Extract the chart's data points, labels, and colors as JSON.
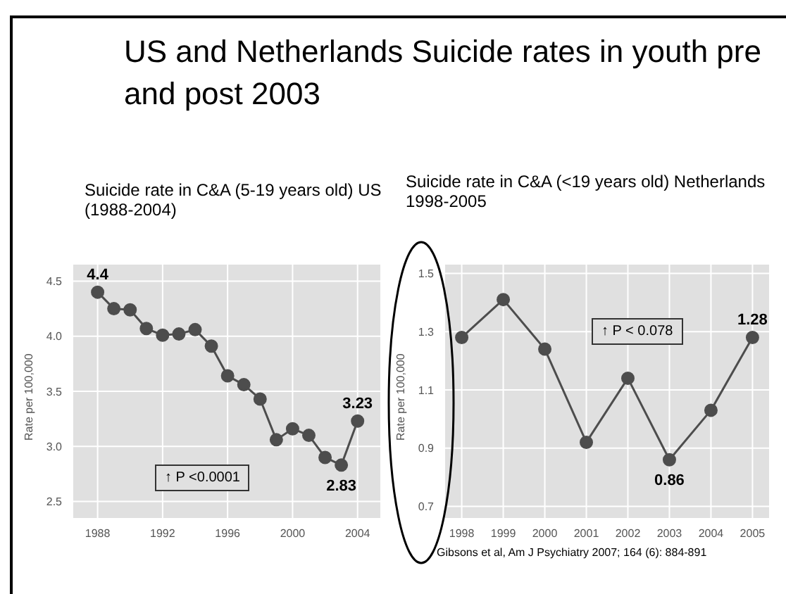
{
  "chart_data": [
    {
      "type": "line",
      "title": "US and Netherlands Suicide rates in youth pre and post 2003",
      "subtitle": "Suicide rate in C&A (5-19 years old)  US (1988-2004)",
      "ylabel": "Rate per 100,000",
      "x": [
        1988,
        1989,
        1990,
        1991,
        1992,
        1993,
        1994,
        1995,
        1996,
        1997,
        1998,
        1999,
        2000,
        2001,
        2002,
        2003,
        2004
      ],
      "series": [
        {
          "color": "#4d4d4d",
          "values": [
            4.4,
            4.25,
            4.24,
            4.07,
            4.01,
            4.02,
            4.06,
            3.91,
            3.64,
            3.56,
            3.43,
            3.06,
            3.16,
            3.1,
            2.9,
            2.83,
            3.23
          ],
          "value_labels": [
            "4.4",
            null,
            null,
            null,
            null,
            null,
            null,
            null,
            null,
            null,
            null,
            null,
            null,
            null,
            null,
            "2.83",
            "3.23"
          ]
        }
      ],
      "xlim": [
        1986.5,
        2005.4
      ],
      "xticks": [
        1988,
        1992,
        1996,
        2000,
        2004
      ],
      "ylim": [
        2.35,
        4.65
      ],
      "yticks": [
        2.5,
        {
          "value": 3,
          "label": "3.0"
        },
        3.5,
        {
          "value": 4,
          "label": "4.0"
        },
        4.5
      ],
      "grid": true,
      "marker": "circle",
      "line_style": "solid",
      "annotations": [
        "↑ P <0.0001"
      ]
    },
    {
      "type": "line",
      "title": "Suicide rate in C&A (<19 years old) Netherlands 1998-2005",
      "ylabel": "Rate per 100,000",
      "x": [
        1998,
        1999,
        2000,
        2001,
        2002,
        2003,
        2004,
        2005
      ],
      "series": [
        {
          "color": "#4d4d4d",
          "values": [
            1.28,
            1.41,
            1.24,
            0.92,
            1.14,
            0.86,
            1.03,
            1.28
          ],
          "value_labels": [
            null,
            null,
            null,
            null,
            null,
            "0.86",
            null,
            "1.28"
          ]
        }
      ],
      "xlim": [
        1997.6,
        2005.4
      ],
      "xticks": [
        1998,
        1999,
        2000,
        2001,
        2002,
        2003,
        2004,
        2005
      ],
      "ylim": [
        0.66,
        1.53
      ],
      "yticks": [
        0.7,
        0.9,
        1.1,
        1.3,
        1.5
      ],
      "grid": true,
      "marker": "circle",
      "line_style": "solid",
      "annotations": [
        "↑ P < 0.078",
        "Gibsons et al, Am J Psychiatry 2007; 164 (6): 884-891"
      ]
    }
  ]
}
